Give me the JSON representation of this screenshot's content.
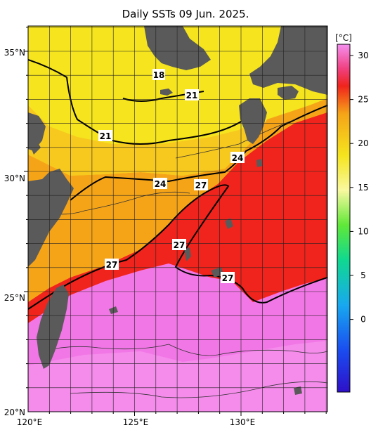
{
  "title": "Daily SSTs 09 Jun. 2025.",
  "colorbar": {
    "unit": "[°C]",
    "ticks": [
      "30",
      "25",
      "20",
      "15",
      "10",
      "5",
      "0"
    ]
  },
  "axes": {
    "lat_labels": [
      "35°N",
      "30°N",
      "25°N",
      "20°N"
    ],
    "lon_labels": [
      "120°E",
      "125°E",
      "130°E"
    ]
  },
  "contour_labels": [
    "18",
    "21",
    "21",
    "24",
    "24",
    "27",
    "27",
    "27",
    "27"
  ],
  "colors": {
    "land": "#5a5a5a",
    "warm_pink": "#f277e6",
    "red": "#f0241c",
    "orange": "#f5a418",
    "yellow": "#f5e41e"
  }
}
